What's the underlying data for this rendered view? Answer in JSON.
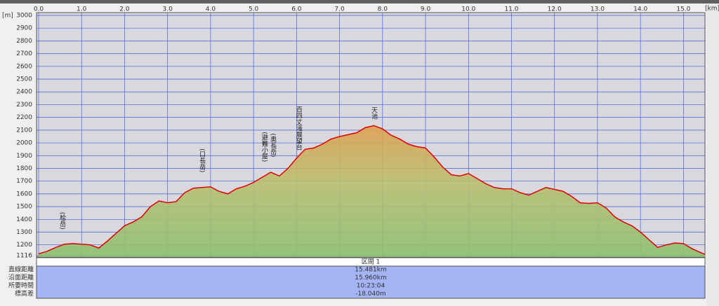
{
  "chart_data": {
    "type": "line",
    "y_unit": "[m]",
    "x_unit": "[km]",
    "x": [
      0,
      0.2,
      0.4,
      0.6,
      0.8,
      1.0,
      1.2,
      1.4,
      1.6,
      1.8,
      2.0,
      2.2,
      2.4,
      2.6,
      2.8,
      3.0,
      3.2,
      3.4,
      3.6,
      3.8,
      4.0,
      4.2,
      4.4,
      4.6,
      4.8,
      5.0,
      5.2,
      5.4,
      5.6,
      5.8,
      6.0,
      6.2,
      6.4,
      6.6,
      6.8,
      7.0,
      7.2,
      7.4,
      7.6,
      7.8,
      8.0,
      8.2,
      8.4,
      8.6,
      8.8,
      9.0,
      9.2,
      9.4,
      9.6,
      9.8,
      10.0,
      10.2,
      10.4,
      10.6,
      10.8,
      11.0,
      11.2,
      11.4,
      11.6,
      11.8,
      12.0,
      12.2,
      12.4,
      12.6,
      12.8,
      13.0,
      13.2,
      13.4,
      13.6,
      13.8,
      14.0,
      14.2,
      14.4,
      14.6,
      14.8,
      15.0,
      15.2,
      15.4,
      15.5
    ],
    "series": [
      {
        "color": "#e00000",
        "values": [
          1130,
          1150,
          1180,
          1205,
          1210,
          1205,
          1200,
          1175,
          1230,
          1290,
          1350,
          1380,
          1420,
          1500,
          1545,
          1530,
          1540,
          1610,
          1645,
          1650,
          1655,
          1620,
          1600,
          1640,
          1660,
          1690,
          1730,
          1770,
          1740,
          1800,
          1880,
          1950,
          1960,
          1990,
          2030,
          2050,
          2065,
          2080,
          2120,
          2135,
          2110,
          2060,
          2030,
          1990,
          1970,
          1960,
          1890,
          1810,
          1750,
          1740,
          1760,
          1720,
          1680,
          1650,
          1640,
          1640,
          1610,
          1590,
          1620,
          1650,
          1635,
          1620,
          1580,
          1530,
          1525,
          1530,
          1490,
          1420,
          1380,
          1350,
          1300,
          1240,
          1180,
          1200,
          1215,
          1210,
          1170,
          1140,
          1125
        ]
      }
    ],
    "xlim": [
      0,
      15.5
    ],
    "xticks": [
      {
        "value": 0,
        "label": "0.0"
      },
      {
        "value": 1,
        "label": "1.0"
      },
      {
        "value": 2,
        "label": "2.0"
      },
      {
        "value": 3,
        "label": "3.0"
      },
      {
        "value": 4,
        "label": "4.0"
      },
      {
        "value": 5,
        "label": "5.0"
      },
      {
        "value": 6,
        "label": "6.0"
      },
      {
        "value": 7,
        "label": "7.0"
      },
      {
        "value": 8,
        "label": "8.0"
      },
      {
        "value": 9,
        "label": "9.0"
      },
      {
        "value": 10,
        "label": "10.0"
      },
      {
        "value": 11,
        "label": "11.0"
      },
      {
        "value": 12,
        "label": "12.0"
      },
      {
        "value": 13,
        "label": "13.0"
      },
      {
        "value": 14,
        "label": "14.0"
      },
      {
        "value": 15,
        "label": "15.0"
      }
    ],
    "ylim": [
      1116,
      3000
    ],
    "yticks": [
      3000,
      2900,
      2800,
      2700,
      2600,
      2500,
      2400,
      2300,
      2200,
      2100,
      2000,
      1900,
      1800,
      1700,
      1600,
      1500,
      1400,
      1300,
      1200,
      1116
    ],
    "grid": true,
    "annotations": [
      {
        "text": "(桧岳)",
        "x": 0.55
      },
      {
        "text": "(口長岳)",
        "x": 3.8
      },
      {
        "text": "(避難小屋)",
        "x": 5.25
      },
      {
        "text": "(奥長岳)",
        "x": 5.45
      },
      {
        "text": "百四丈滝展望台",
        "x": 6.05
      },
      {
        "text": "天池",
        "x": 7.8
      }
    ]
  },
  "table": {
    "header": "区間 1",
    "rows": [
      [
        "直線距離",
        "15.481km"
      ],
      [
        "沿面距離",
        "15.960km"
      ],
      [
        "所要時間",
        "10:23:04"
      ],
      [
        "標高差",
        "-18.040m"
      ]
    ]
  }
}
